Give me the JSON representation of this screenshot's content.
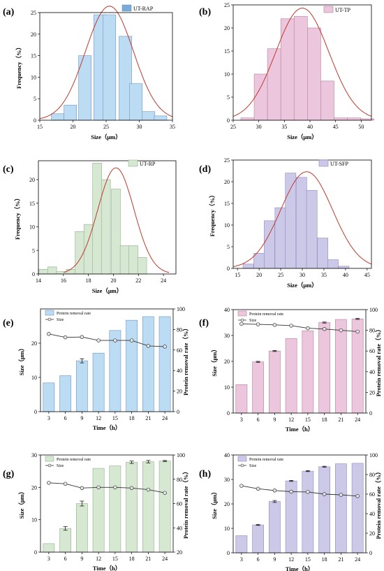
{
  "colors": {
    "rap": "#bcdcf4",
    "rap_stroke": "#6f95c0",
    "rap_legend": "#7aaad8",
    "tp": "#ecc6dc",
    "tp_stroke": "#b4809c",
    "rp": "#d6e7d2",
    "rp_stroke": "#93b08d",
    "sfp": "#ccc9e8",
    "sfp_stroke": "#8f88c0",
    "fit": "#c0392b",
    "line": "#333333"
  },
  "chart_data": [
    {
      "id": "a",
      "type": "bar",
      "panel_label": "(a)",
      "legend": "UT-RAP",
      "xlabel": "Size（μm）",
      "ylabel": "Frequency（%）",
      "xlim": [
        15,
        35
      ],
      "ylim": [
        0,
        25
      ],
      "xticks": [
        15,
        20,
        25,
        30,
        35
      ],
      "yticks": [
        0,
        5,
        10,
        15,
        20,
        25
      ],
      "bin_width": 1.9,
      "x": [
        17.7,
        19.6,
        21.8,
        24.1,
        25.5,
        27.9,
        29.5,
        31.4,
        33.2
      ],
      "values": [
        1.5,
        3.5,
        15,
        24.5,
        24.5,
        19.5,
        8.5,
        2,
        1
      ],
      "fit": {
        "mean": 25.5,
        "sd": 3.6,
        "peak": 26.5
      }
    },
    {
      "id": "b",
      "type": "bar",
      "panel_label": "(b)",
      "legend": "UT-TP",
      "xlabel": "Size（μm）",
      "ylabel": "",
      "xlim": [
        25,
        52
      ],
      "ylim": [
        0,
        25
      ],
      "xticks": [
        25,
        30,
        35,
        40,
        45,
        50
      ],
      "yticks": [
        0,
        5,
        10,
        15,
        20,
        25
      ],
      "bin_width": 2.6,
      "x": [
        27.8,
        30.4,
        33.0,
        35.6,
        38.2,
        40.8,
        43.4,
        46.0,
        48.6,
        51.2
      ],
      "values": [
        0.5,
        10,
        15.5,
        22,
        22.5,
        20,
        8.5,
        0.5,
        0.5,
        0.3
      ],
      "fit": {
        "mean": 38.5,
        "sd": 5.2,
        "peak": 24.3
      }
    },
    {
      "id": "c",
      "type": "bar",
      "panel_label": "(c)",
      "legend": "UT-RP",
      "xlabel": "Size（μm）",
      "ylabel": "Frequency（%）",
      "xlim": [
        14,
        25
      ],
      "ylim": [
        0,
        24
      ],
      "xticks": [
        14,
        16,
        18,
        20,
        22,
        24
      ],
      "yticks": [
        0,
        5,
        10,
        15,
        20
      ],
      "bin_width": 0.72,
      "x": [
        14.4,
        15.1,
        15.8,
        16.6,
        17.3,
        18.0,
        18.7,
        19.4,
        20.2,
        20.9,
        21.6,
        22.3,
        23.0,
        23.8
      ],
      "values": [
        1,
        1.5,
        0.5,
        1,
        9,
        10.5,
        23.5,
        20,
        18,
        6,
        6,
        3.5,
        0,
        0
      ],
      "fit": {
        "mean": 20.2,
        "sd": 1.45,
        "peak": 22.5
      }
    },
    {
      "id": "d",
      "type": "bar",
      "panel_label": "(d)",
      "legend": "UT-SFP",
      "xlabel": "Size（μm）",
      "ylabel": "Frequency（%）",
      "xlim": [
        14,
        46
      ],
      "ylim": [
        0,
        25
      ],
      "xticks": [
        15,
        20,
        25,
        30,
        35,
        40,
        45
      ],
      "yticks": [
        0,
        5,
        10,
        15,
        20,
        25
      ],
      "bin_width": 2.45,
      "x": [
        17.5,
        20.0,
        22.4,
        24.9,
        27.3,
        29.8,
        32.2,
        34.7,
        37.1,
        39.6,
        42.0,
        44.5
      ],
      "values": [
        1,
        3.5,
        11,
        14,
        22,
        21,
        18,
        7,
        2,
        0.5,
        0,
        0
      ],
      "fit": {
        "mean": 31,
        "sd": 6,
        "peak": 22.3
      }
    },
    {
      "id": "e",
      "type": "bar",
      "panel_label": "(e)",
      "legend_bar": "Protein removal rate",
      "legend_line": "Size",
      "xlabel": "Time（h）",
      "ylabel": "Size（μm）",
      "ylabel_right": "Protein removal rate（%）",
      "categories": [
        "3",
        "6",
        "9",
        "12",
        "15",
        "18",
        "21",
        "24"
      ],
      "ylim_left": [
        0,
        30
      ],
      "ylim_right": [
        0,
        100
      ],
      "yticks_left": [
        0,
        10,
        20
      ],
      "yticks_right": [
        0,
        20,
        40,
        60,
        80,
        100
      ],
      "bar_values": [
        28,
        35,
        49.5,
        57,
        79,
        89,
        92.5,
        92.5
      ],
      "bar_errors": [
        0,
        0,
        2,
        0,
        0,
        0,
        0,
        0
      ],
      "line_values": [
        22.7,
        21.7,
        21.8,
        20.8,
        20.8,
        20.8,
        19.2,
        19
      ]
    },
    {
      "id": "f",
      "type": "bar",
      "panel_label": "(f)",
      "legend_bar": "Protein removal rate",
      "legend_line": "Size",
      "xlabel": "Time（h）",
      "ylabel": "Size（μm）",
      "ylabel_right": "Protein removal rate（%）",
      "categories": [
        "3",
        "6",
        "9",
        "12",
        "15",
        "18",
        "21",
        "24"
      ],
      "ylim_left": [
        0,
        40
      ],
      "ylim_right": [
        0,
        100
      ],
      "yticks_left": [
        0,
        10,
        20,
        30,
        40
      ],
      "yticks_right": [
        0,
        20,
        40,
        60,
        80,
        100
      ],
      "bar_values": [
        27.5,
        49.5,
        60,
        72,
        79.5,
        87.5,
        90.5,
        91
      ],
      "bar_errors": [
        0,
        0.5,
        0.5,
        0,
        0,
        0.5,
        0,
        0.5
      ],
      "line_values": [
        34.5,
        34.3,
        34.1,
        33.8,
        32.8,
        32.5,
        32,
        31.5
      ]
    },
    {
      "id": "g",
      "type": "bar",
      "panel_label": "(g)",
      "legend_bar": "Protein removal rate",
      "legend_line": "Size",
      "xlabel": "Time（h）",
      "ylabel": "Size（μm）",
      "ylabel_right": "Protein removal rate（%）",
      "categories": [
        "3",
        "6",
        "9",
        "12",
        "15",
        "18",
        "21",
        "24"
      ],
      "ylim_left": [
        0,
        30
      ],
      "ylim_right": [
        20,
        100
      ],
      "yticks_left": [
        0,
        10,
        20,
        30
      ],
      "yticks_right": [
        20,
        40,
        60,
        80,
        100
      ],
      "bar_values": [
        27,
        39.5,
        60,
        89,
        91,
        94,
        94.5,
        95
      ],
      "bar_errors": [
        0,
        1.5,
        2,
        0,
        0,
        1,
        1,
        0.5
      ],
      "line_values": [
        21.4,
        21.1,
        19.8,
        20,
        20,
        19.8,
        19.3,
        18.3
      ]
    },
    {
      "id": "h",
      "type": "bar",
      "panel_label": "(h)",
      "legend_bar": "Protein removal rate",
      "legend_line": "Size",
      "xlabel": "Time（h）",
      "ylabel": "Size（μm）",
      "ylabel_right": "Protein removal rate（%）",
      "categories": [
        "3",
        "6",
        "9",
        "12",
        "15",
        "18",
        "21",
        "24"
      ],
      "ylim_left": [
        0,
        40
      ],
      "ylim_right": [
        0,
        100
      ],
      "yticks_left": [
        0,
        10,
        20,
        30,
        40
      ],
      "yticks_right": [
        0,
        20,
        40,
        60,
        80,
        100
      ],
      "bar_values": [
        17.5,
        28.5,
        52.5,
        73.5,
        83.5,
        88,
        91,
        91.5
      ],
      "bar_errors": [
        0,
        0.5,
        1,
        0.5,
        0.5,
        0.5,
        0,
        0
      ],
      "line_values": [
        27.4,
        26.2,
        25.5,
        25,
        24.9,
        24,
        23.7,
        23.2
      ]
    }
  ]
}
